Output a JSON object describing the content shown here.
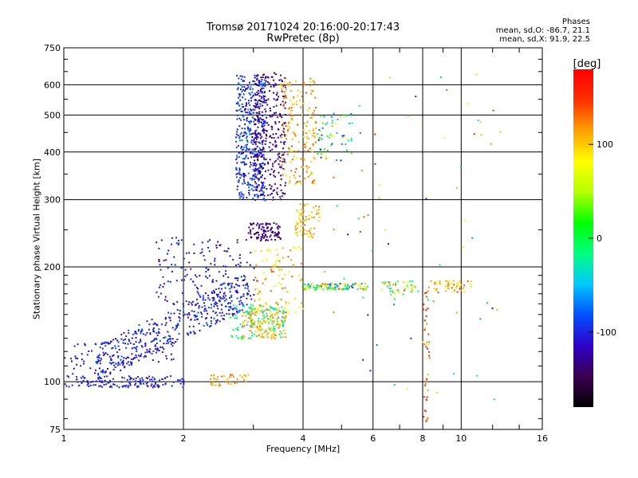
{
  "chart_data": {
    "type": "scatter",
    "title": "Tromsø 20171024 20:16:00-20:17:43",
    "subtitle": "RwPretec (8p)",
    "xlabel": "Frequency [MHz]",
    "ylabel": "Stationary phase Virtual Height [km]",
    "x_scale": "log",
    "y_scale": "log",
    "xlim": [
      1,
      16
    ],
    "ylim": [
      75,
      750
    ],
    "x_ticks": [
      1,
      2,
      4,
      6,
      8,
      10,
      16
    ],
    "x_tick_labels": [
      "1",
      "2",
      "4",
      "6",
      "8",
      "10",
      "16"
    ],
    "y_ticks": [
      75,
      100,
      200,
      300,
      400,
      500,
      600,
      750
    ],
    "y_tick_labels": [
      "75",
      "100",
      "200",
      "300",
      "400",
      "500",
      "600",
      "750"
    ],
    "grid": true,
    "phase_stats": {
      "heading": "Phases",
      "line_o": "mean, sd,O: -86.7, 21.1",
      "line_x": "mean, sd,X:  91.9, 22.5"
    },
    "colorbar": {
      "label": "[deg]",
      "min": -180,
      "max": 180,
      "ticks": [
        100,
        0,
        -100
      ],
      "tick_labels": [
        "100",
        "0",
        "-100"
      ],
      "colors": [
        "#000000",
        "#3c0050",
        "#3000c8",
        "#0050ff",
        "#00c8ff",
        "#00ff80",
        "#00ff00",
        "#b4ff00",
        "#ffff00",
        "#ffa000",
        "#ff3000",
        "#ff0000"
      ]
    },
    "clusters": [
      {
        "f": [
          1.0,
          2.0
        ],
        "h": [
          97,
          104
        ],
        "phase": [
          -110,
          -95
        ],
        "shape": "band",
        "n": 140
      },
      {
        "f": [
          1.0,
          1.9
        ],
        "h": [
          112,
          128
        ],
        "phase": [
          -115,
          -100
        ],
        "shape": "rise",
        "n": 80
      },
      {
        "f": [
          1.2,
          2.9
        ],
        "h": [
          112,
          175
        ],
        "phase": [
          -120,
          -80
        ],
        "shape": "rise",
        "n": 420
      },
      {
        "f": [
          1.7,
          3.0
        ],
        "h": [
          160,
          240
        ],
        "phase": [
          -125,
          -90
        ],
        "shape": "cloud",
        "n": 160
      },
      {
        "f": [
          2.3,
          2.9
        ],
        "h": [
          98,
          105
        ],
        "phase": [
          100,
          130
        ],
        "shape": "band",
        "n": 40
      },
      {
        "f": [
          2.6,
          3.6
        ],
        "h": [
          130,
          160
        ],
        "phase": [
          -60,
          30
        ],
        "shape": "cloud",
        "n": 120
      },
      {
        "f": [
          2.8,
          3.6
        ],
        "h": [
          130,
          155
        ],
        "phase": [
          90,
          125
        ],
        "shape": "cloud",
        "n": 110
      },
      {
        "f": [
          3.0,
          4.0
        ],
        "h": [
          150,
          230
        ],
        "phase": [
          60,
          140
        ],
        "shape": "cloud",
        "n": 100
      },
      {
        "f": [
          2.7,
          3.2
        ],
        "h": [
          300,
          640
        ],
        "phase": [
          -120,
          -70
        ],
        "shape": "cloud",
        "n": 420
      },
      {
        "f": [
          3.0,
          3.6
        ],
        "h": [
          300,
          650
        ],
        "phase": [
          -150,
          -110
        ],
        "shape": "cloud",
        "n": 320
      },
      {
        "f": [
          2.9,
          3.5
        ],
        "h": [
          235,
          262
        ],
        "phase": [
          -150,
          -120
        ],
        "shape": "cloud",
        "n": 100
      },
      {
        "f": [
          3.5,
          4.3
        ],
        "h": [
          330,
          630
        ],
        "phase": [
          90,
          140
        ],
        "shape": "cloud",
        "n": 180
      },
      {
        "f": [
          3.8,
          4.4
        ],
        "h": [
          240,
          300
        ],
        "phase": [
          85,
          130
        ],
        "shape": "cloud",
        "n": 70
      },
      {
        "f": [
          4.0,
          5.8
        ],
        "h": [
          175,
          182
        ],
        "phase": [
          -100,
          140
        ],
        "shape": "band",
        "n": 120
      },
      {
        "f": [
          4.3,
          5.3
        ],
        "h": [
          380,
          510
        ],
        "phase": [
          -110,
          120
        ],
        "shape": "cloud",
        "n": 60
      },
      {
        "f": [
          6.3,
          7.8
        ],
        "h": [
          170,
          185
        ],
        "phase": [
          -80,
          140
        ],
        "shape": "band",
        "n": 45
      },
      {
        "f": [
          8.3,
          10.6
        ],
        "h": [
          172,
          185
        ],
        "phase": [
          50,
          150
        ],
        "shape": "band",
        "n": 50
      },
      {
        "f": [
          8.0,
          8.3
        ],
        "h": [
          78,
          180
        ],
        "phase": [
          100,
          170
        ],
        "shape": "cloud",
        "n": 40
      },
      {
        "f": [
          4.5,
          12.5
        ],
        "h": [
          90,
          650
        ],
        "phase": [
          -120,
          160
        ],
        "shape": "cloud",
        "n": 70
      }
    ]
  }
}
